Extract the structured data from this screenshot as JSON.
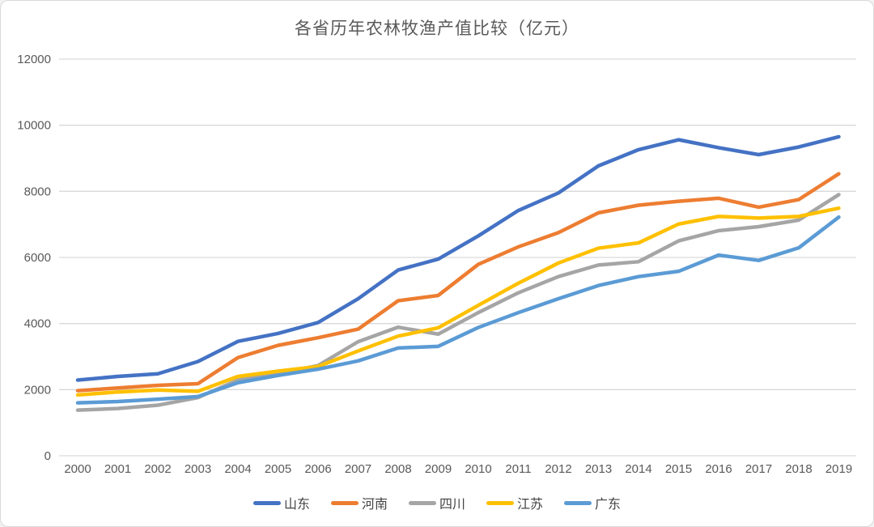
{
  "chart": {
    "title": "各省历年农林牧渔产值比较（亿元）"
  },
  "chart_data": {
    "type": "line",
    "title": "各省历年农林牧渔产值比较（亿元）",
    "x": [
      2000,
      2001,
      2002,
      2003,
      2004,
      2005,
      2006,
      2007,
      2008,
      2009,
      2010,
      2011,
      2012,
      2013,
      2014,
      2015,
      2016,
      2017,
      2018,
      2019
    ],
    "series": [
      {
        "name": "山东",
        "color": "#4472C4",
        "values": [
          2290,
          2400,
          2480,
          2850,
          3460,
          3700,
          4030,
          4750,
          5620,
          5950,
          6650,
          7420,
          7950,
          8770,
          9260,
          9560,
          9320,
          9110,
          9340,
          9650
        ]
      },
      {
        "name": "河南",
        "color": "#ED7D31",
        "values": [
          1970,
          2050,
          2130,
          2180,
          2970,
          3340,
          3570,
          3830,
          4690,
          4850,
          5790,
          6320,
          6750,
          7350,
          7580,
          7700,
          7790,
          7520,
          7750,
          8530
        ]
      },
      {
        "name": "四川",
        "color": "#A5A5A5",
        "values": [
          1380,
          1430,
          1530,
          1760,
          2290,
          2480,
          2730,
          3450,
          3890,
          3680,
          4330,
          4930,
          5420,
          5770,
          5870,
          6500,
          6810,
          6930,
          7130,
          7900
        ]
      },
      {
        "name": "江苏",
        "color": "#FFC000",
        "values": [
          1840,
          1930,
          1990,
          1950,
          2400,
          2560,
          2700,
          3170,
          3620,
          3870,
          4550,
          5220,
          5830,
          6280,
          6440,
          7010,
          7240,
          7190,
          7240,
          7490
        ]
      },
      {
        "name": "广东",
        "color": "#5B9BD5",
        "values": [
          1600,
          1640,
          1710,
          1790,
          2210,
          2430,
          2620,
          2870,
          3260,
          3310,
          3880,
          4330,
          4750,
          5150,
          5420,
          5580,
          6070,
          5910,
          6290,
          7220
        ]
      }
    ],
    "ylim": [
      0,
      12000
    ],
    "ytick_step": 2000,
    "yticks": [
      0,
      2000,
      4000,
      6000,
      8000,
      10000,
      12000
    ],
    "grid": true,
    "legend_position": "bottom",
    "axis_label_color": "#595959",
    "grid_color": "#d9d9d9"
  }
}
